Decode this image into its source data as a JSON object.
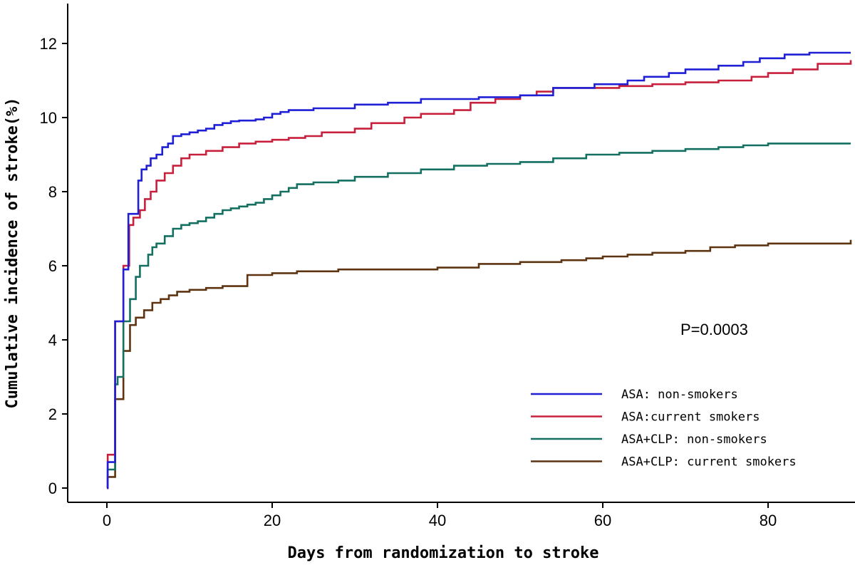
{
  "chart_data": {
    "type": "line",
    "step": true,
    "title": "",
    "xlabel": "Days from randomization to stroke",
    "ylabel": "Cumulative incidence of stroke(%)",
    "xlim": [
      -5,
      90
    ],
    "ylim": [
      -0.1,
      13
    ],
    "xticks": [
      0,
      20,
      40,
      60,
      80
    ],
    "yticks": [
      0,
      2,
      4,
      6,
      8,
      10,
      12
    ],
    "annotation": "P=0.0003",
    "legend_position": "bottom-right",
    "series": [
      {
        "name": "ASA: non-smokers",
        "color": "#1f1fd6",
        "x": [
          0,
          0.1,
          1,
          1.2,
          2,
          2.6,
          3,
          3.8,
          4.2,
          4.8,
          5.3,
          6,
          6.7,
          7.4,
          8,
          9,
          10,
          11,
          12,
          13,
          14,
          15,
          16,
          18,
          19,
          20,
          21,
          22,
          25,
          30,
          34,
          38,
          45,
          50,
          54,
          59,
          63,
          65,
          68,
          70,
          74,
          77,
          79,
          82,
          85,
          90
        ],
        "y": [
          0,
          0.7,
          4.5,
          4.5,
          5.9,
          7.4,
          7.4,
          8.3,
          8.6,
          8.7,
          8.9,
          9.0,
          9.2,
          9.3,
          9.5,
          9.55,
          9.6,
          9.65,
          9.7,
          9.8,
          9.85,
          9.9,
          9.92,
          9.95,
          10.0,
          10.1,
          10.15,
          10.2,
          10.25,
          10.35,
          10.4,
          10.5,
          10.55,
          10.6,
          10.8,
          10.9,
          11.0,
          11.1,
          11.2,
          11.3,
          11.4,
          11.5,
          11.6,
          11.7,
          11.75,
          11.75
        ]
      },
      {
        "name": "ASA:current smokers",
        "color": "#c8203c",
        "x": [
          0,
          0.1,
          1,
          1.3,
          2,
          2.7,
          3.2,
          4,
          4.6,
          5.3,
          6,
          7,
          8,
          9,
          10,
          12,
          14,
          16,
          18,
          20,
          22,
          24,
          26,
          30,
          32,
          36,
          38,
          42,
          44,
          47,
          50,
          52,
          54,
          58,
          62,
          66,
          70,
          74,
          78,
          80,
          83,
          86,
          90
        ],
        "y": [
          0,
          0.9,
          4.5,
          4.5,
          6.0,
          7.1,
          7.3,
          7.5,
          7.8,
          8.0,
          8.3,
          8.5,
          8.7,
          8.9,
          9.0,
          9.1,
          9.2,
          9.3,
          9.35,
          9.4,
          9.45,
          9.5,
          9.6,
          9.7,
          9.85,
          10.0,
          10.1,
          10.2,
          10.4,
          10.5,
          10.6,
          10.7,
          10.8,
          10.8,
          10.85,
          10.9,
          10.95,
          11.0,
          11.1,
          11.2,
          11.3,
          11.45,
          11.55
        ]
      },
      {
        "name": "ASA+CLP: non-smokers",
        "color": "#137060",
        "x": [
          0,
          0.1,
          1,
          1.3,
          2,
          2.8,
          3.5,
          4,
          5,
          5.5,
          6,
          7,
          8,
          9,
          10,
          11,
          12,
          13,
          14,
          15,
          16,
          17,
          18,
          19,
          20,
          21,
          22,
          23,
          25,
          28,
          30,
          34,
          38,
          42,
          46,
          50,
          54,
          58,
          62,
          66,
          70,
          74,
          77,
          80,
          90
        ],
        "y": [
          0,
          0.5,
          2.8,
          3.0,
          4.5,
          5.1,
          5.7,
          6.0,
          6.3,
          6.5,
          6.6,
          6.8,
          7.0,
          7.1,
          7.15,
          7.2,
          7.3,
          7.4,
          7.5,
          7.55,
          7.6,
          7.65,
          7.7,
          7.8,
          7.9,
          8.0,
          8.1,
          8.2,
          8.25,
          8.3,
          8.4,
          8.5,
          8.6,
          8.7,
          8.75,
          8.8,
          8.9,
          9.0,
          9.05,
          9.1,
          9.15,
          9.2,
          9.25,
          9.3,
          9.3
        ]
      },
      {
        "name": "ASA+CLP: current smokers",
        "color": "#5e3410",
        "x": [
          0,
          0.1,
          1,
          1.5,
          2,
          2.8,
          3.5,
          4.5,
          5.5,
          6.5,
          7.5,
          8.5,
          10,
          12,
          14,
          17,
          20,
          23,
          28,
          40,
          45,
          50,
          55,
          58,
          60,
          63,
          66,
          70,
          73,
          76,
          80,
          90
        ],
        "y": [
          0,
          0.3,
          2.4,
          2.4,
          3.7,
          4.4,
          4.6,
          4.8,
          5.0,
          5.1,
          5.2,
          5.3,
          5.35,
          5.4,
          5.45,
          5.75,
          5.8,
          5.85,
          5.9,
          5.95,
          6.05,
          6.1,
          6.15,
          6.2,
          6.25,
          6.3,
          6.35,
          6.4,
          6.5,
          6.55,
          6.6,
          6.7
        ]
      }
    ]
  }
}
